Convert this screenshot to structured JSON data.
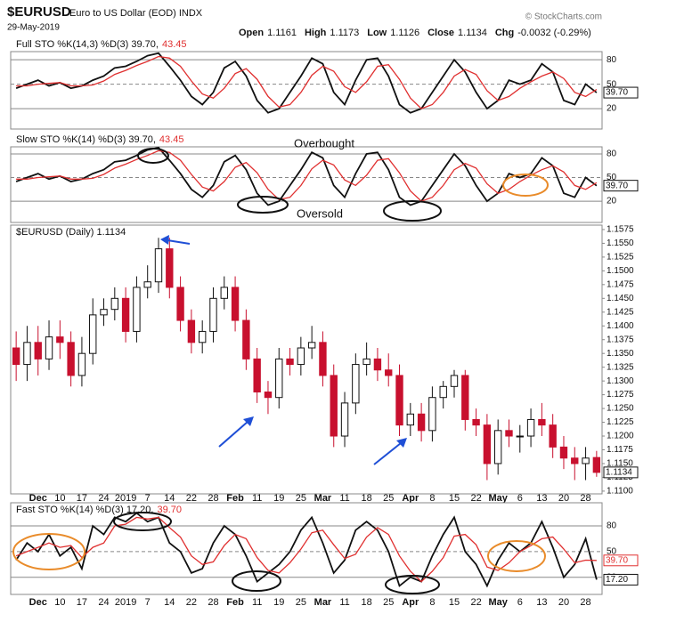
{
  "header": {
    "symbol": "$EURUSD",
    "name": "Euro to US Dollar (EOD) INDX",
    "date": "29-May-2019",
    "credit": "© StockCharts.com",
    "quote": [
      {
        "label": "Open",
        "value": "1.1161"
      },
      {
        "label": "High",
        "value": "1.1173"
      },
      {
        "label": "Low",
        "value": "1.1126"
      },
      {
        "label": "Close",
        "value": "1.1134"
      },
      {
        "label": "Chg",
        "value": "-0.0032 (-0.29%)"
      }
    ]
  },
  "chart_data": [
    {
      "type": "line",
      "title": "Full STO %K(14,3) %D(3) 39.70,",
      "title_d": "43.45",
      "box_label": "39.70",
      "ylim": [
        -5,
        90
      ],
      "yticks": [
        20,
        50,
        80
      ],
      "grid": true,
      "series": [
        {
          "color": "#111111",
          "values": [
            45,
            50,
            55,
            48,
            52,
            45,
            48,
            55,
            60,
            70,
            72,
            78,
            85,
            88,
            72,
            55,
            35,
            25,
            40,
            70,
            78,
            60,
            30,
            15,
            20,
            40,
            60,
            82,
            75,
            40,
            25,
            55,
            80,
            82,
            60,
            25,
            15,
            20,
            40,
            60,
            80,
            65,
            40,
            20,
            30,
            55,
            50,
            55,
            75,
            65,
            30,
            25,
            50,
            39.7
          ]
        },
        {
          "color": "#e03030",
          "values": [
            48,
            48,
            50,
            51,
            52,
            48,
            48,
            49,
            54,
            62,
            67,
            73,
            78,
            84,
            82,
            72,
            54,
            38,
            33,
            45,
            63,
            69,
            56,
            35,
            22,
            25,
            40,
            61,
            72,
            66,
            47,
            40,
            53,
            72,
            74,
            56,
            33,
            20,
            25,
            40,
            60,
            68,
            62,
            42,
            30,
            35,
            45,
            53,
            60,
            65,
            57,
            40,
            35,
            43.45
          ]
        }
      ]
    },
    {
      "type": "line",
      "title": "Slow STO %K(14) %D(3) 39.70,",
      "title_d": "43.45",
      "box_label": "39.70",
      "ylim": [
        -7,
        89
      ],
      "yticks": [
        20,
        50,
        80
      ],
      "grid": true,
      "annotations": [
        "Overbought",
        "Oversold"
      ],
      "series": [
        {
          "color": "#111111",
          "values": [
            45,
            50,
            55,
            48,
            52,
            45,
            48,
            55,
            60,
            70,
            72,
            78,
            85,
            88,
            72,
            55,
            35,
            25,
            40,
            70,
            78,
            60,
            30,
            15,
            20,
            40,
            60,
            82,
            75,
            40,
            25,
            55,
            80,
            82,
            60,
            25,
            15,
            20,
            40,
            60,
            80,
            65,
            40,
            20,
            30,
            55,
            50,
            55,
            75,
            65,
            30,
            25,
            50,
            39.7
          ]
        },
        {
          "color": "#e03030",
          "values": [
            48,
            48,
            50,
            51,
            52,
            48,
            48,
            49,
            54,
            62,
            67,
            73,
            78,
            84,
            82,
            72,
            54,
            38,
            33,
            45,
            63,
            69,
            56,
            35,
            22,
            25,
            40,
            61,
            72,
            66,
            47,
            40,
            53,
            72,
            74,
            56,
            33,
            20,
            25,
            40,
            60,
            68,
            62,
            42,
            30,
            35,
            45,
            53,
            60,
            65,
            57,
            40,
            35,
            43.45
          ]
        }
      ]
    },
    {
      "type": "candlestick",
      "title": "$EURUSD (Daily) 1.1134",
      "box_label": "1.1134",
      "up_color": "#111111",
      "down_color": "#c8102e",
      "ylim": [
        1.1095,
        1.1583
      ],
      "yticks": [
        {
          "value": 1.11,
          "label": "1.1100"
        },
        {
          "value": 1.1125,
          "label": "1.1125"
        },
        {
          "value": 1.115,
          "label": "1.1150"
        },
        {
          "value": 1.1175,
          "label": "1.1175"
        },
        {
          "value": 1.12,
          "label": "1.1200"
        },
        {
          "value": 1.1225,
          "label": "1.1225"
        },
        {
          "value": 1.125,
          "label": "1.1250"
        },
        {
          "value": 1.1275,
          "label": "1.1275"
        },
        {
          "value": 1.13,
          "label": "1.1300"
        },
        {
          "value": 1.1325,
          "label": "1.1325"
        },
        {
          "value": 1.135,
          "label": "1.1350"
        },
        {
          "value": 1.1375,
          "label": "1.1375"
        },
        {
          "value": 1.14,
          "label": "1.1400"
        },
        {
          "value": 1.1425,
          "label": "1.1425"
        },
        {
          "value": 1.145,
          "label": "1.1450"
        },
        {
          "value": 1.1475,
          "label": "1.1475"
        },
        {
          "value": 1.15,
          "label": "1.1500"
        },
        {
          "value": 1.1525,
          "label": "1.1525"
        },
        {
          "value": 1.155,
          "label": "1.1550"
        },
        {
          "value": 1.1575,
          "label": "1.1575"
        }
      ],
      "categories": [
        null,
        null,
        "Dec",
        null,
        "10",
        null,
        "17",
        null,
        "24",
        null,
        "2019",
        null,
        "7",
        null,
        "14",
        null,
        "22",
        null,
        "28",
        null,
        "Feb",
        null,
        "11",
        null,
        "19",
        null,
        "25",
        null,
        "Mar",
        null,
        "11",
        null,
        "18",
        null,
        "25",
        null,
        "Apr",
        null,
        "8",
        null,
        "15",
        null,
        "22",
        null,
        "May",
        null,
        "6",
        null,
        "13",
        null,
        "20",
        null,
        "28",
        null
      ],
      "open": [
        1.136,
        1.133,
        1.137,
        1.134,
        1.138,
        1.137,
        1.131,
        1.135,
        1.142,
        1.143,
        1.145,
        1.139,
        1.147,
        1.148,
        1.154,
        1.147,
        1.141,
        1.137,
        1.139,
        1.145,
        1.147,
        1.141,
        1.134,
        1.128,
        1.127,
        1.134,
        1.133,
        1.136,
        1.137,
        1.131,
        1.12,
        1.126,
        1.133,
        1.134,
        1.132,
        1.131,
        1.122,
        1.124,
        1.121,
        1.127,
        1.129,
        1.131,
        1.123,
        1.122,
        1.115,
        1.121,
        1.12,
        1.12,
        1.123,
        1.122,
        1.118,
        1.116,
        1.115,
        1.1161
      ],
      "high": [
        1.139,
        1.14,
        1.14,
        1.141,
        1.141,
        1.139,
        1.138,
        1.145,
        1.145,
        1.147,
        1.147,
        1.149,
        1.151,
        1.156,
        1.156,
        1.149,
        1.143,
        1.141,
        1.147,
        1.149,
        1.149,
        1.143,
        1.136,
        1.13,
        1.136,
        1.136,
        1.138,
        1.14,
        1.139,
        1.133,
        1.128,
        1.135,
        1.137,
        1.136,
        1.135,
        1.133,
        1.126,
        1.126,
        1.129,
        1.13,
        1.132,
        1.132,
        1.125,
        1.124,
        1.123,
        1.123,
        1.122,
        1.125,
        1.126,
        1.124,
        1.12,
        1.118,
        1.118,
        1.1173
      ],
      "low": [
        1.13,
        1.13,
        1.131,
        1.132,
        1.134,
        1.129,
        1.129,
        1.133,
        1.14,
        1.141,
        1.137,
        1.137,
        1.145,
        1.146,
        1.145,
        1.139,
        1.135,
        1.135,
        1.137,
        1.143,
        1.139,
        1.132,
        1.126,
        1.124,
        1.125,
        1.131,
        1.131,
        1.134,
        1.129,
        1.118,
        1.118,
        1.124,
        1.131,
        1.13,
        1.129,
        1.12,
        1.12,
        1.119,
        1.119,
        1.125,
        1.127,
        1.121,
        1.12,
        1.112,
        1.113,
        1.118,
        1.117,
        1.118,
        1.12,
        1.116,
        1.114,
        1.112,
        1.112,
        1.1126
      ],
      "close": [
        1.133,
        1.137,
        1.134,
        1.138,
        1.137,
        1.131,
        1.135,
        1.142,
        1.143,
        1.145,
        1.139,
        1.147,
        1.148,
        1.154,
        1.147,
        1.141,
        1.137,
        1.139,
        1.145,
        1.147,
        1.141,
        1.134,
        1.128,
        1.127,
        1.134,
        1.133,
        1.136,
        1.137,
        1.131,
        1.12,
        1.126,
        1.133,
        1.134,
        1.132,
        1.131,
        1.122,
        1.124,
        1.121,
        1.127,
        1.129,
        1.131,
        1.123,
        1.122,
        1.115,
        1.121,
        1.12,
        1.12,
        1.123,
        1.122,
        1.118,
        1.116,
        1.115,
        1.116,
        1.1134
      ]
    },
    {
      "type": "line",
      "title": "Fast STO %K(14) %D(3) 17.20,",
      "title_d": "39.70",
      "ylim": [
        0,
        107
      ],
      "yticks": [
        20,
        50,
        80
      ],
      "grid": true,
      "categories": [
        null,
        null,
        "Dec",
        null,
        "10",
        null,
        "17",
        null,
        "24",
        null,
        "2019",
        null,
        "7",
        null,
        "14",
        null,
        "22",
        null,
        "28",
        null,
        "Feb",
        null,
        "11",
        null,
        "19",
        null,
        "25",
        null,
        "Mar",
        null,
        "11",
        null,
        "18",
        null,
        "25",
        null,
        "Apr",
        null,
        "8",
        null,
        "15",
        null,
        "22",
        null,
        "May",
        null,
        "6",
        null,
        "13",
        null,
        "20",
        null,
        "28",
        null
      ],
      "series": [
        {
          "color": "#111111",
          "box_label": "17.20",
          "values": [
            40,
            60,
            50,
            70,
            45,
            55,
            30,
            80,
            70,
            90,
            85,
            95,
            85,
            90,
            60,
            50,
            25,
            30,
            60,
            80,
            70,
            45,
            15,
            25,
            35,
            50,
            75,
            90,
            60,
            25,
            40,
            75,
            85,
            75,
            50,
            10,
            20,
            15,
            45,
            70,
            90,
            50,
            35,
            10,
            40,
            60,
            50,
            60,
            85,
            55,
            20,
            35,
            65,
            17.2
          ]
        },
        {
          "color": "#e03030",
          "box_label": "39.70",
          "values": [
            45,
            50,
            55,
            60,
            55,
            57,
            43,
            55,
            60,
            80,
            82,
            90,
            88,
            90,
            78,
            67,
            45,
            35,
            38,
            57,
            70,
            65,
            43,
            28,
            25,
            37,
            53,
            72,
            75,
            58,
            42,
            47,
            67,
            78,
            70,
            45,
            27,
            15,
            27,
            43,
            68,
            70,
            58,
            32,
            28,
            37,
            50,
            57,
            65,
            67,
            53,
            37,
            40,
            39.7
          ]
        }
      ]
    }
  ]
}
